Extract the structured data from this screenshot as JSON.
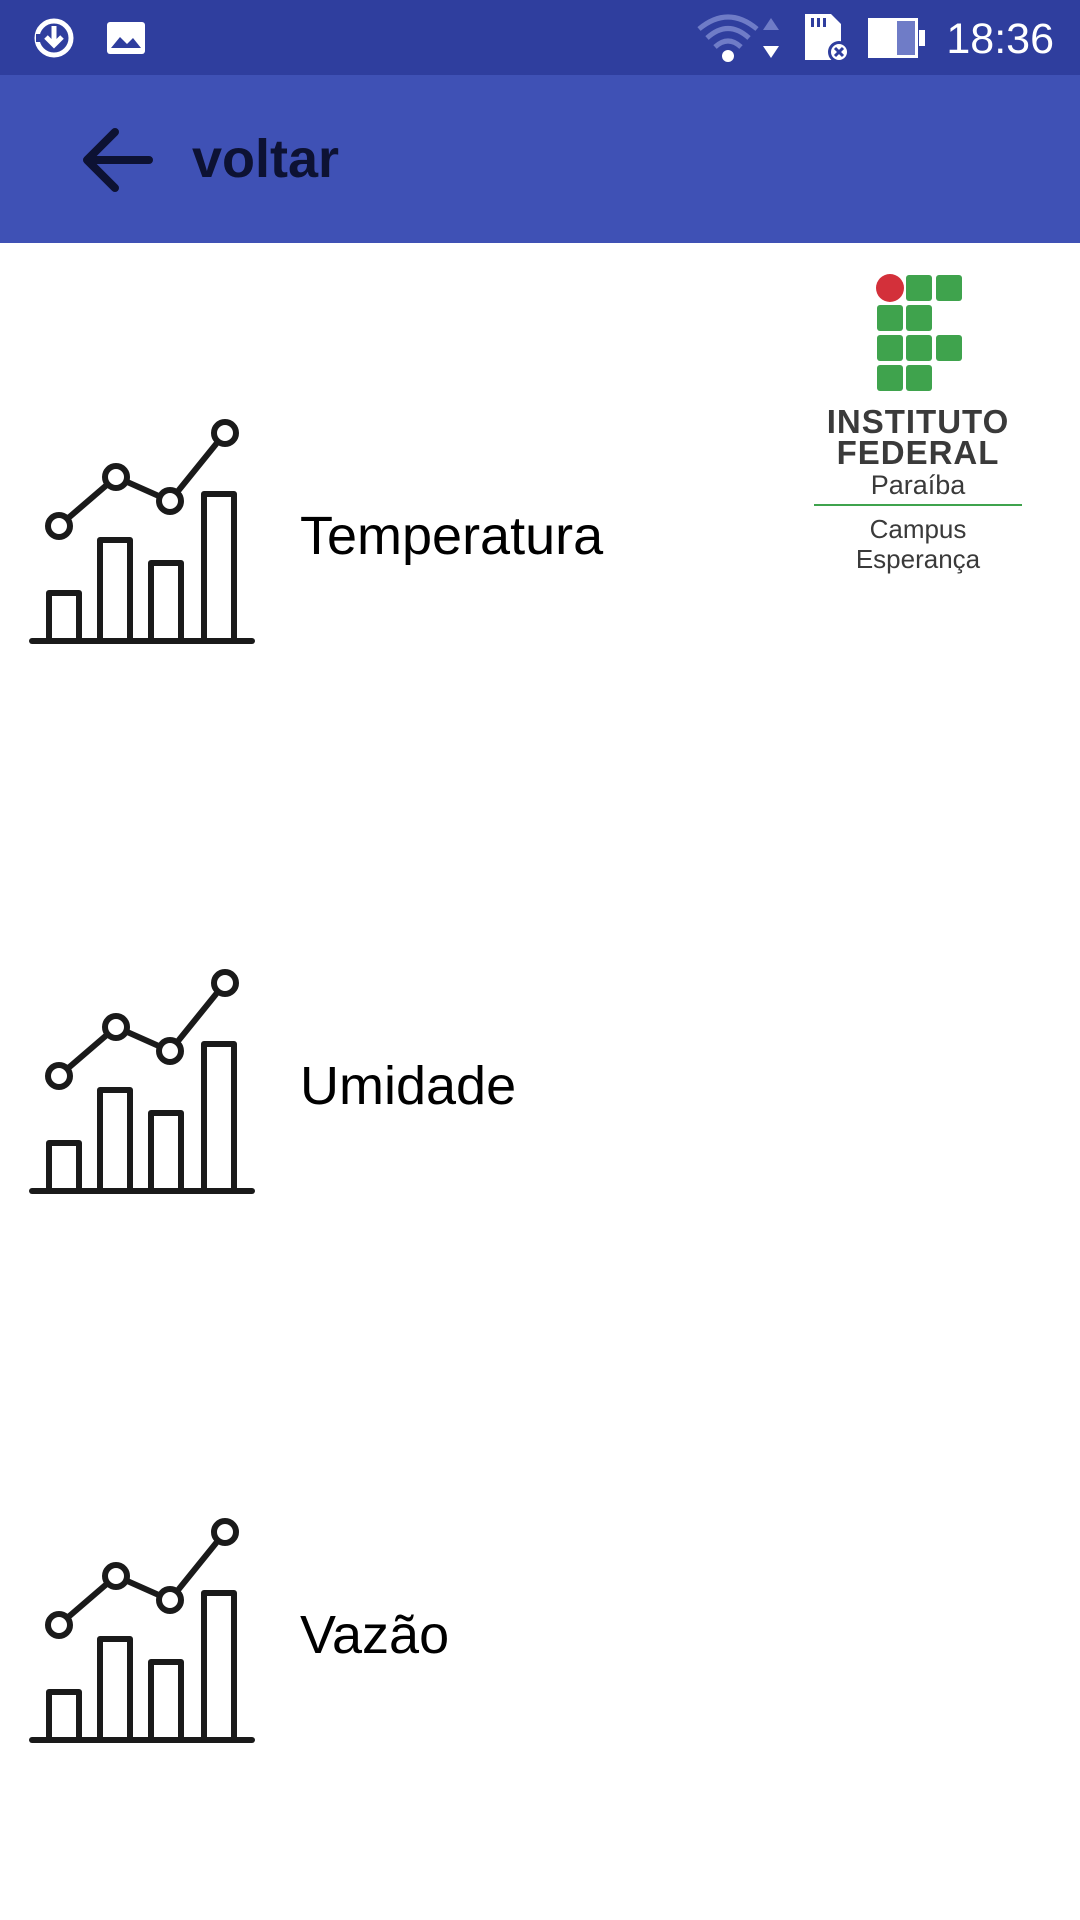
{
  "status_bar": {
    "time": "18:36",
    "icons": [
      "download-sync-icon",
      "image-icon",
      "wifi-icon",
      "data-arrows-icon",
      "sd-card-error-icon",
      "battery-icon"
    ],
    "background": "#2f3e9e"
  },
  "app_bar": {
    "back_icon": "arrow-left-icon",
    "title": "voltar",
    "background": "#3f51b5"
  },
  "logo": {
    "line1": "INSTITUTO",
    "line2": "FEDERAL",
    "subtitle": "Paraíba",
    "campus_line1": "Campus",
    "campus_line2": "Esperança",
    "accent_green": "#3fa34d",
    "accent_red": "#d3303a"
  },
  "menu": {
    "items": [
      {
        "label": "Temperatura",
        "icon": "bar-line-chart-icon"
      },
      {
        "label": "Umidade",
        "icon": "bar-line-chart-icon"
      },
      {
        "label": "Vazão",
        "icon": "bar-line-chart-icon"
      }
    ]
  }
}
